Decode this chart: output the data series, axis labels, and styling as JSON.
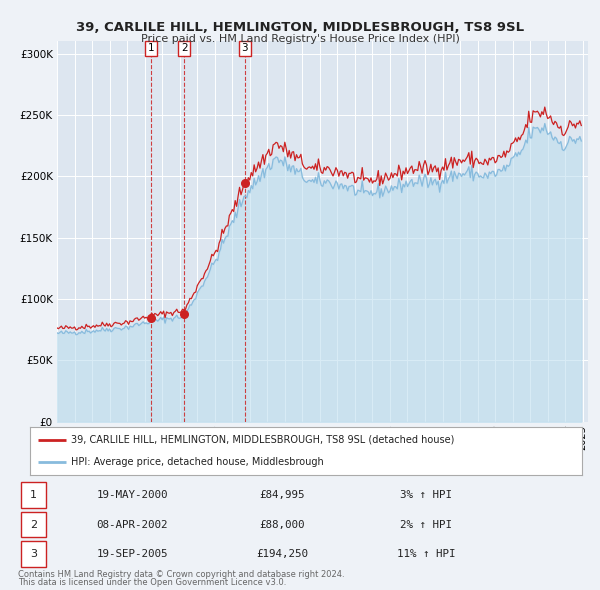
{
  "title": "39, CARLILE HILL, HEMLINGTON, MIDDLESBROUGH, TS8 9SL",
  "subtitle": "Price paid vs. HM Land Registry's House Price Index (HPI)",
  "background_color": "#eef2f7",
  "plot_bg_color": "#dde6f0",
  "grid_color": "#ffffff",
  "sale_color": "#cc2222",
  "hpi_color": "#88bbdd",
  "hpi_fill_color": "#bbddee",
  "ylim": [
    0,
    310000
  ],
  "yticks": [
    0,
    50000,
    100000,
    150000,
    200000,
    250000,
    300000
  ],
  "ytick_labels": [
    "£0",
    "£50K",
    "£100K",
    "£150K",
    "£200K",
    "£250K",
    "£300K"
  ],
  "xlim_start": 1995,
  "xlim_end": 2025.3,
  "sales": [
    {
      "date_num": 2000.37,
      "price": 84995,
      "label": "1"
    },
    {
      "date_num": 2002.27,
      "price": 88000,
      "label": "2"
    },
    {
      "date_num": 2005.72,
      "price": 194250,
      "label": "3"
    }
  ],
  "vlines": [
    2000.37,
    2002.27,
    2005.72
  ],
  "legend_sale_label": "39, CARLILE HILL, HEMLINGTON, MIDDLESBROUGH, TS8 9SL (detached house)",
  "legend_hpi_label": "HPI: Average price, detached house, Middlesbrough",
  "table_rows": [
    {
      "num": "1",
      "date": "19-MAY-2000",
      "price": "£84,995",
      "hpi": "3% ↑ HPI"
    },
    {
      "num": "2",
      "date": "08-APR-2002",
      "price": "£88,000",
      "hpi": "2% ↑ HPI"
    },
    {
      "num": "3",
      "date": "19-SEP-2005",
      "price": "£194,250",
      "hpi": "11% ↑ HPI"
    }
  ],
  "footnote1": "Contains HM Land Registry data © Crown copyright and database right 2024.",
  "footnote2": "This data is licensed under the Open Government Licence v3.0."
}
